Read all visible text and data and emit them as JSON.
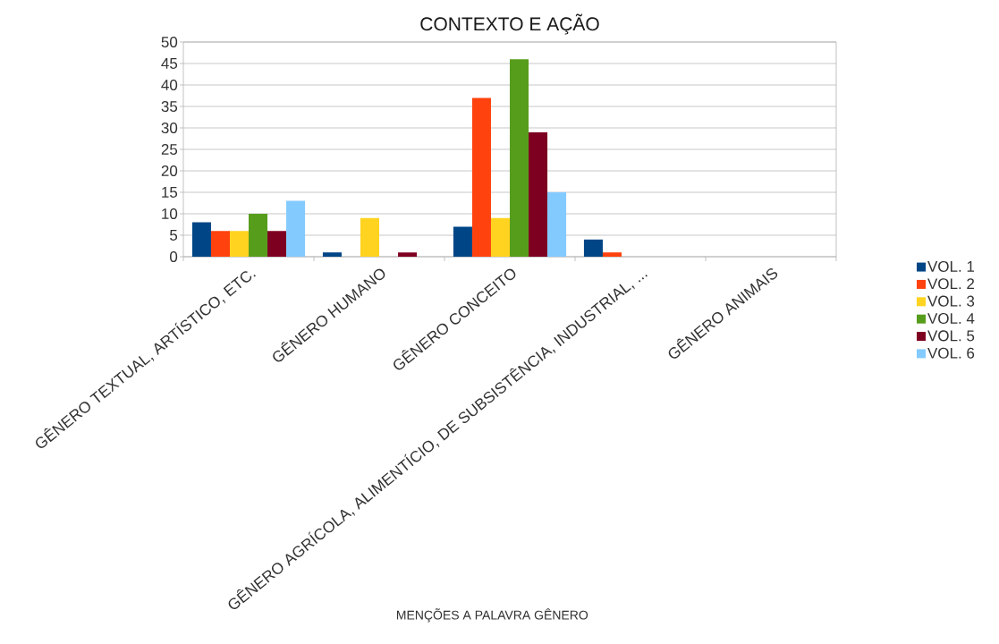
{
  "chart_data": {
    "type": "bar",
    "title": "CONTEXTO E AÇÃO",
    "xlabel": "MENÇÕES A PALAVRA GÊNERO",
    "categories": [
      "GÊNERO TEXTUAL, ARTÍSTICO, ETC.",
      "GÊNERO HUMANO",
      "GÊNERO CONCEITO",
      "GÊNERO AGRÍCOLA, ALIMENTÍCIO, DE SUBSISTÊNCIA, INDUSTRIAL, ...",
      "GÊNERO ANIMAIS"
    ],
    "series": [
      {
        "name": "VOL. 1",
        "color": "#004586",
        "values": [
          8,
          1,
          7,
          4,
          0
        ]
      },
      {
        "name": "VOL. 2",
        "color": "#ff420e",
        "values": [
          6,
          0,
          37,
          1,
          0
        ]
      },
      {
        "name": "VOL. 3",
        "color": "#ffd320",
        "values": [
          6,
          9,
          9,
          0,
          0
        ]
      },
      {
        "name": "VOL. 4",
        "color": "#579d1c",
        "values": [
          10,
          0,
          46,
          0,
          0
        ]
      },
      {
        "name": "VOL. 5",
        "color": "#7e0021",
        "values": [
          6,
          1,
          29,
          0,
          0
        ]
      },
      {
        "name": "VOL. 6",
        "color": "#83caff",
        "values": [
          13,
          0,
          15,
          0,
          0
        ]
      }
    ],
    "ylim": [
      0,
      50
    ],
    "yticks": [
      0,
      5,
      10,
      15,
      20,
      25,
      30,
      35,
      40,
      45,
      50
    ],
    "grid": "y",
    "legend": "right"
  }
}
